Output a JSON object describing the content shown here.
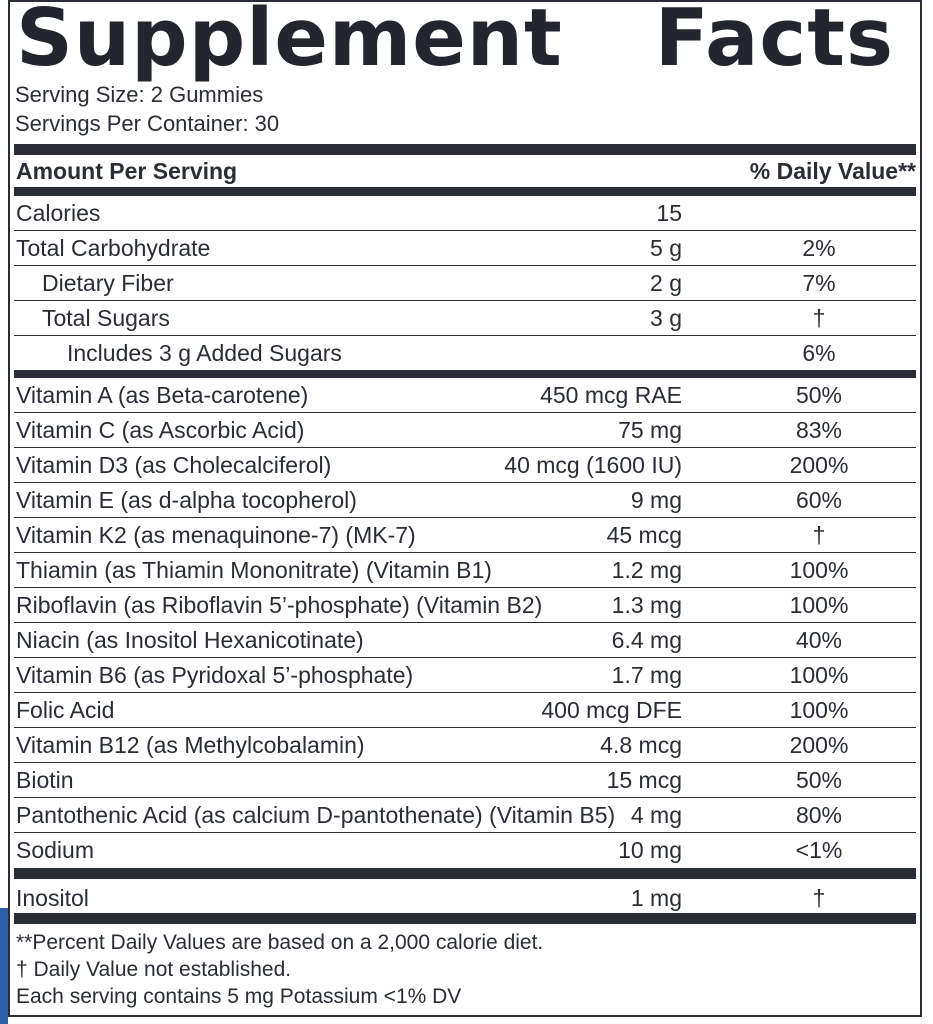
{
  "title": {
    "word1": "Supplement",
    "word2": "Facts"
  },
  "serving_size": "Serving Size: 2 Gummies",
  "servings_per_container": "Servings Per Container: 30",
  "header": {
    "amount_label": "Amount Per Serving",
    "dv_label": "% Daily Value**"
  },
  "rows": [
    {
      "name": "Calories",
      "amount": "15",
      "dv": ""
    },
    {
      "name": "Total Carbohydrate",
      "amount": "5 g",
      "dv": "2%"
    },
    {
      "name": "Dietary Fiber",
      "amount": "2 g",
      "dv": "7%"
    },
    {
      "name": "Total Sugars",
      "amount": "3 g",
      "dv": "†"
    },
    {
      "name": "Includes 3 g Added Sugars",
      "amount": "",
      "dv": "6%"
    },
    {
      "name": "Vitamin A (as Beta-carotene)",
      "amount": "450 mcg RAE",
      "dv": "50%"
    },
    {
      "name": "Vitamin C (as Ascorbic Acid)",
      "amount": "75 mg",
      "dv": "83%"
    },
    {
      "name": "Vitamin D3 (as Cholecalciferol)",
      "amount": "40 mcg (1600 IU)",
      "dv": "200%"
    },
    {
      "name": "Vitamin E (as d-alpha tocopherol)",
      "amount": "9 mg",
      "dv": "60%"
    },
    {
      "name": "Vitamin K2 (as menaquinone-7) (MK-7)",
      "amount": "45 mcg",
      "dv": "†"
    },
    {
      "name": "Thiamin (as Thiamin Mononitrate) (Vitamin B1)",
      "amount": "1.2 mg",
      "dv": "100%"
    },
    {
      "name": "Riboflavin (as Riboflavin 5’-phosphate) (Vitamin B2)",
      "amount": "1.3 mg",
      "dv": "100%"
    },
    {
      "name": "Niacin (as Inositol Hexanicotinate)",
      "amount": "6.4 mg",
      "dv": "40%"
    },
    {
      "name": "Vitamin B6 (as Pyridoxal 5’-phosphate)",
      "amount": "1.7 mg",
      "dv": "100%"
    },
    {
      "name": "Folic Acid",
      "amount": "400 mcg DFE",
      "dv": "100%"
    },
    {
      "name": "Vitamin B12 (as Methylcobalamin)",
      "amount": "4.8 mcg",
      "dv": "200%"
    },
    {
      "name": "Biotin",
      "amount": "15 mcg",
      "dv": "50%"
    },
    {
      "name": "Pantothenic Acid (as calcium D-pantothenate) (Vitamin B5)",
      "amount": "4 mg",
      "dv": "80%"
    },
    {
      "name": "Sodium",
      "amount": "10 mg",
      "dv": "<1%"
    },
    {
      "name": "Inositol",
      "amount": "1 mg",
      "dv": "†"
    }
  ],
  "footnotes": [
    "**Percent Daily Values are based on a 2,000 calorie diet.",
    "† Daily Value not established.",
    "Each serving contains 5 mg Potassium <1% DV"
  ]
}
